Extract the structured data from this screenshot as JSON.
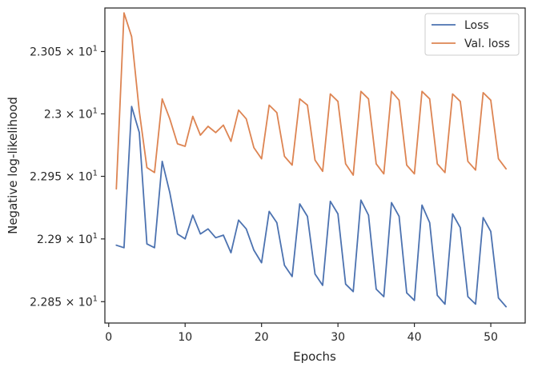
{
  "chart_data": {
    "type": "line",
    "xlabel": "Epochs",
    "ylabel": "Negative log-likelihood",
    "xlim": [
      -0.5,
      54.5
    ],
    "ylim": [
      22.833,
      23.085
    ],
    "yscale": "log",
    "xticks": [
      0,
      10,
      20,
      30,
      40,
      50
    ],
    "yticks": [
      {
        "value": 22.85,
        "mantissa": "2.285",
        "exponent": "1"
      },
      {
        "value": 22.9,
        "mantissa": "2.29",
        "exponent": "1"
      },
      {
        "value": 22.95,
        "mantissa": "2.295",
        "exponent": "1"
      },
      {
        "value": 23.0,
        "mantissa": "2.3",
        "exponent": "1"
      },
      {
        "value": 23.05,
        "mantissa": "2.305",
        "exponent": "1"
      }
    ],
    "grid": false,
    "legend_position": "top-right",
    "x": [
      1,
      2,
      3,
      4,
      5,
      6,
      7,
      8,
      9,
      10,
      11,
      12,
      13,
      14,
      15,
      16,
      17,
      18,
      19,
      20,
      21,
      22,
      23,
      24,
      25,
      26,
      27,
      28,
      29,
      30,
      31,
      32,
      33,
      34,
      35,
      36,
      37,
      38,
      39,
      40,
      41,
      42,
      43,
      44,
      45,
      46,
      47,
      48,
      49,
      50,
      51,
      52
    ],
    "series": [
      {
        "name": "Loss",
        "color": "#4c72b0",
        "values": [
          22.895,
          22.893,
          23.006,
          22.985,
          22.896,
          22.893,
          22.962,
          22.937,
          22.904,
          22.9,
          22.919,
          22.904,
          22.908,
          22.901,
          22.903,
          22.889,
          22.915,
          22.908,
          22.891,
          22.881,
          22.922,
          22.913,
          22.879,
          22.87,
          22.928,
          22.918,
          22.872,
          22.863,
          22.93,
          22.92,
          22.864,
          22.858,
          22.931,
          22.919,
          22.86,
          22.854,
          22.929,
          22.918,
          22.857,
          22.851,
          22.927,
          22.913,
          22.855,
          22.848,
          22.92,
          22.909,
          22.854,
          22.848,
          22.917,
          22.906,
          22.853,
          22.846
        ]
      },
      {
        "name": "Val. loss",
        "color": "#dd8452",
        "values": [
          22.94,
          23.081,
          23.062,
          23.002,
          22.957,
          22.953,
          23.012,
          22.996,
          22.976,
          22.974,
          22.998,
          22.983,
          22.99,
          22.985,
          22.991,
          22.978,
          23.003,
          22.996,
          22.973,
          22.964,
          23.007,
          23.001,
          22.966,
          22.959,
          23.012,
          23.007,
          22.963,
          22.954,
          23.016,
          23.01,
          22.96,
          22.951,
          23.018,
          23.012,
          22.96,
          22.952,
          23.018,
          23.011,
          22.959,
          22.952,
          23.018,
          23.012,
          22.96,
          22.953,
          23.016,
          23.01,
          22.962,
          22.955,
          23.017,
          23.011,
          22.964,
          22.956
        ]
      }
    ]
  }
}
